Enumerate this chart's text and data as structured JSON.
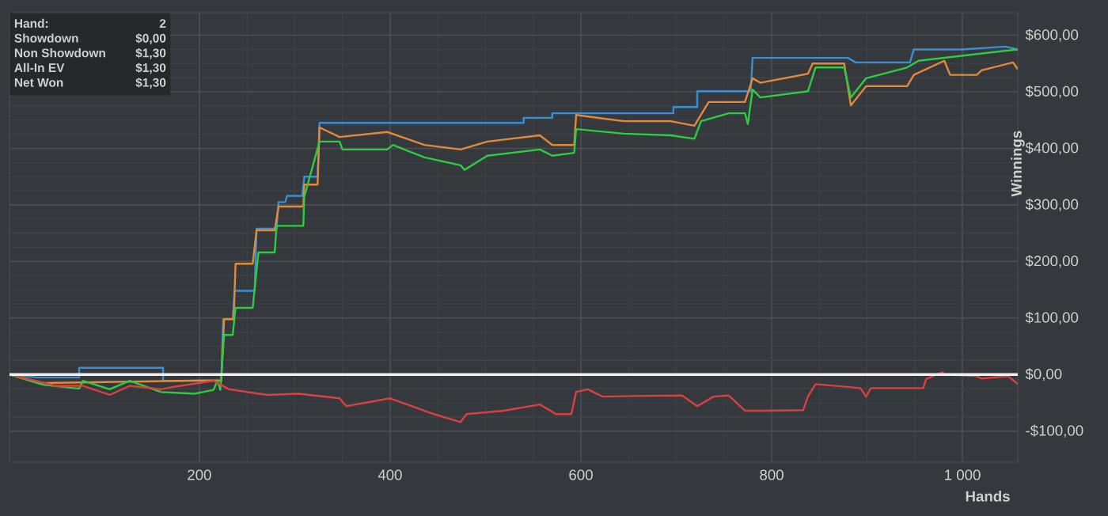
{
  "chart_data": {
    "type": "line",
    "xlabel": "Hands",
    "ylabel": "Winnings",
    "xlim": [
      1,
      1058
    ],
    "ylim": [
      -155,
      640
    ],
    "xticks": [
      200,
      400,
      600,
      800,
      {
        "value": 1000,
        "label": "1 000"
      }
    ],
    "yticks": [
      {
        "value": -100,
        "label": "-$100,00"
      },
      {
        "value": 0,
        "label": "$0,00"
      },
      {
        "value": 100,
        "label": "$100,00"
      },
      {
        "value": 200,
        "label": "$200,00"
      },
      {
        "value": 300,
        "label": "$300,00"
      },
      {
        "value": 400,
        "label": "$400,00"
      },
      {
        "value": 500,
        "label": "$500,00"
      },
      {
        "value": 600,
        "label": "$600,00"
      }
    ],
    "grid": true,
    "marker": "none",
    "line_style": "solid",
    "ref_lines": [
      {
        "axis": "y",
        "value": 0,
        "color": "#f0f0f0"
      }
    ],
    "annotations": [
      "Hand:",
      "2",
      "Showdown",
      "$0,00",
      "Non Showdown",
      "$1,30",
      "All-In EV",
      "$1,30",
      "Net Won",
      "$1,30"
    ],
    "series": [
      {
        "color": "#3a8fd0",
        "x": [
          1,
          30,
          74,
          74,
          162,
          162,
          223,
          225,
          235,
          237,
          258,
          260,
          281,
          283,
          290,
          292,
          308,
          310,
          324,
          326,
          540,
          540,
          570,
          570,
          697,
          697,
          722,
          722,
          778,
          780,
          880,
          888,
          945,
          949,
          1000,
          1045,
          1058
        ],
        "values": [
          0,
          -5,
          -5,
          12,
          12,
          -11,
          -11,
          98,
          98,
          148,
          148,
          258,
          258,
          305,
          305,
          316,
          316,
          350,
          350,
          445,
          445,
          454,
          454,
          462,
          462,
          473,
          473,
          501,
          501,
          560,
          560,
          552,
          552,
          575,
          575,
          580,
          575
        ]
      },
      {
        "color": "#e08a3a",
        "x": [
          1,
          36,
          223,
          226,
          236,
          238,
          256,
          260,
          279,
          283,
          309,
          310,
          324,
          326,
          347,
          397,
          436,
          474,
          502,
          557,
          570,
          593,
          595,
          645,
          694,
          719,
          734,
          772,
          780,
          788,
          838,
          843,
          876,
          883,
          899,
          942,
          949,
          981,
          987,
          1015,
          1020,
          1053,
          1058
        ],
        "values": [
          0,
          -15,
          -10,
          98,
          98,
          196,
          196,
          255,
          255,
          297,
          297,
          336,
          336,
          437,
          420,
          429,
          406,
          398,
          412,
          423,
          406,
          406,
          459,
          448,
          448,
          440,
          482,
          482,
          524,
          516,
          532,
          550,
          550,
          476,
          510,
          510,
          530,
          555,
          530,
          530,
          538,
          552,
          540
        ]
      },
      {
        "color": "#2ecc40",
        "x": [
          1,
          36,
          74,
          78,
          106,
          127,
          160,
          195,
          215,
          219,
          222,
          226,
          235,
          238,
          256,
          262,
          279,
          281,
          309,
          310,
          326,
          347,
          350,
          397,
          403,
          436,
          474,
          478,
          502,
          557,
          570,
          593,
          595,
          645,
          694,
          719,
          726,
          755,
          772,
          775,
          780,
          788,
          838,
          846,
          876,
          883,
          899,
          942,
          954,
          1058
        ],
        "values": [
          0,
          -18,
          -25,
          -11,
          -26,
          -11,
          -31,
          -34,
          -27,
          -11,
          -27,
          70,
          70,
          118,
          118,
          216,
          216,
          263,
          263,
          314,
          412,
          412,
          398,
          398,
          406,
          384,
          370,
          362,
          387,
          398,
          387,
          392,
          434,
          426,
          423,
          417,
          448,
          462,
          462,
          443,
          504,
          490,
          501,
          543,
          543,
          490,
          524,
          543,
          555,
          575
        ]
      },
      {
        "color": "#d94040",
        "x": [
          1,
          50,
          78,
          106,
          127,
          160,
          172,
          215,
          231,
          271,
          304,
          347,
          354,
          400,
          446,
          474,
          480,
          519,
          557,
          574,
          590,
          595,
          607,
          623,
          656,
          706,
          722,
          739,
          755,
          772,
          794,
          833,
          838,
          846,
          893,
          899,
          904,
          959,
          962,
          979,
          981,
          1015,
          1020,
          1048,
          1058
        ],
        "values": [
          0,
          -20,
          -20,
          -36,
          -20,
          -26,
          -22,
          -11,
          -26,
          -36,
          -34,
          -42,
          -56,
          -42,
          -70,
          -84,
          -70,
          -64,
          -53,
          -70,
          -70,
          -31,
          -26,
          -39,
          -38,
          -37,
          -56,
          -39,
          -37,
          -64,
          -64,
          -63,
          -39,
          -17,
          -24,
          -39,
          -24,
          -24,
          -8,
          4,
          0,
          -3,
          -7,
          -3,
          -17
        ]
      }
    ]
  }
}
